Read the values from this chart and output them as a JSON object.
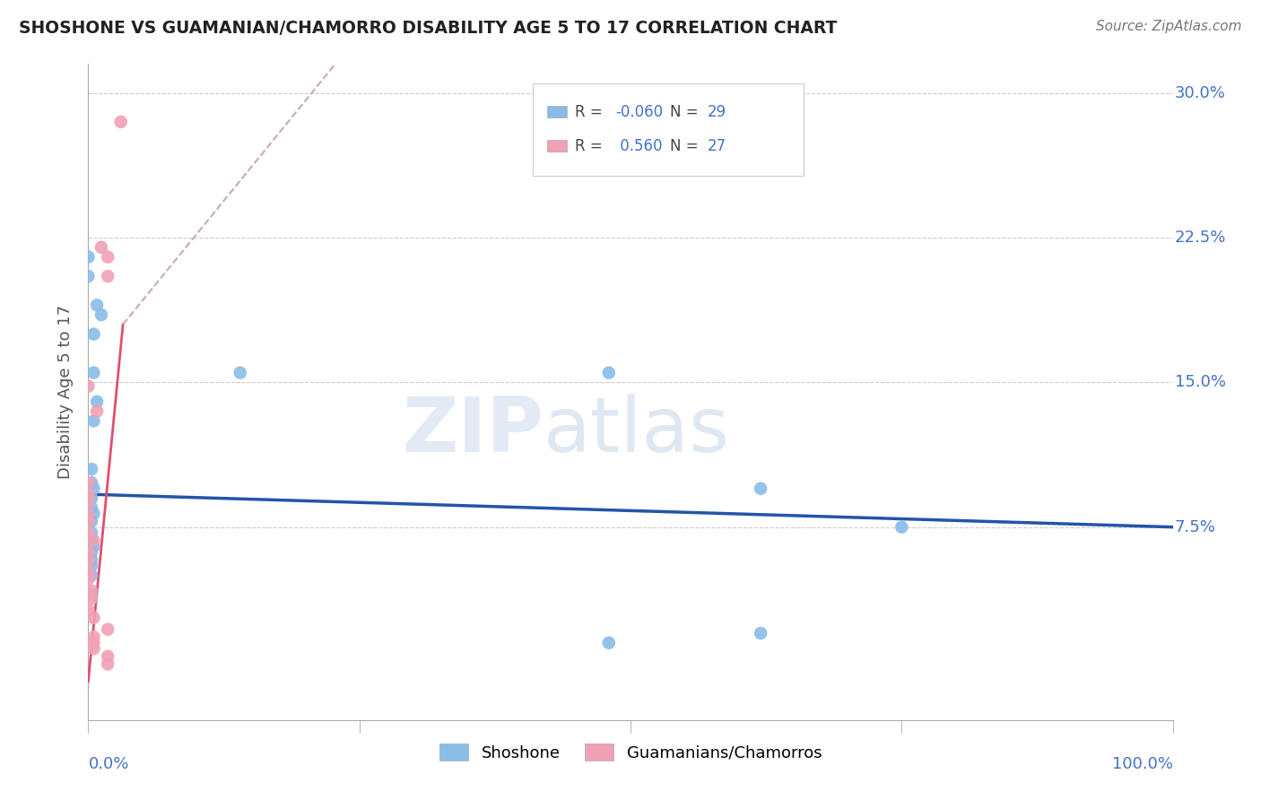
{
  "title": "SHOSHONE VS GUAMANIAN/CHAMORRO DISABILITY AGE 5 TO 17 CORRELATION CHART",
  "source": "Source: ZipAtlas.com",
  "ylabel": "Disability Age 5 to 17",
  "ytick_values": [
    0.075,
    0.15,
    0.225,
    0.3
  ],
  "ytick_labels": [
    "7.5%",
    "15.0%",
    "22.5%",
    "30.0%"
  ],
  "xlim": [
    0.0,
    1.0
  ],
  "ylim": [
    -0.025,
    0.315
  ],
  "r_shoshone": -0.06,
  "n_shoshone": 29,
  "r_guamanian": 0.56,
  "n_guamanian": 27,
  "shoshone_color": "#88bde8",
  "guamanian_color": "#f2a0b5",
  "shoshone_line_color": "#2255aa",
  "guamanian_line_color": "#e05070",
  "guamanian_line_dash_color": "#ccaaaa",
  "watermark_color": "#ccd8ee",
  "grid_color": "#cccccc",
  "shoshone_points": [
    [
      0.0,
      0.205
    ],
    [
      0.008,
      0.19
    ],
    [
      0.012,
      0.185
    ],
    [
      0.005,
      0.175
    ],
    [
      0.0,
      0.215
    ],
    [
      0.005,
      0.155
    ],
    [
      0.005,
      0.13
    ],
    [
      0.008,
      0.14
    ],
    [
      0.003,
      0.105
    ],
    [
      0.003,
      0.098
    ],
    [
      0.005,
      0.095
    ],
    [
      0.003,
      0.09
    ],
    [
      0.003,
      0.085
    ],
    [
      0.005,
      0.082
    ],
    [
      0.003,
      0.078
    ],
    [
      0.003,
      0.072
    ],
    [
      0.003,
      0.068
    ],
    [
      0.005,
      0.065
    ],
    [
      0.003,
      0.062
    ],
    [
      0.003,
      0.058
    ],
    [
      0.003,
      0.055
    ],
    [
      0.003,
      0.05
    ],
    [
      0.003,
      0.04
    ],
    [
      0.14,
      0.155
    ],
    [
      0.48,
      0.155
    ],
    [
      0.62,
      0.095
    ],
    [
      0.75,
      0.075
    ],
    [
      0.62,
      0.02
    ],
    [
      0.48,
      0.015
    ]
  ],
  "guamanian_points": [
    [
      0.03,
      0.285
    ],
    [
      0.012,
      0.22
    ],
    [
      0.018,
      0.215
    ],
    [
      0.018,
      0.205
    ],
    [
      0.0,
      0.148
    ],
    [
      0.008,
      0.135
    ],
    [
      0.0,
      0.098
    ],
    [
      0.0,
      0.092
    ],
    [
      0.0,
      0.088
    ],
    [
      0.0,
      0.082
    ],
    [
      0.0,
      0.078
    ],
    [
      0.0,
      0.072
    ],
    [
      0.005,
      0.068
    ],
    [
      0.0,
      0.062
    ],
    [
      0.0,
      0.058
    ],
    [
      0.0,
      0.052
    ],
    [
      0.0,
      0.048
    ],
    [
      0.003,
      0.042
    ],
    [
      0.003,
      0.038
    ],
    [
      0.0,
      0.032
    ],
    [
      0.005,
      0.028
    ],
    [
      0.018,
      0.022
    ],
    [
      0.005,
      0.018
    ],
    [
      0.005,
      0.015
    ],
    [
      0.005,
      0.012
    ],
    [
      0.018,
      0.008
    ],
    [
      0.018,
      0.004
    ]
  ],
  "legend_shoshone_label": "Shoshone",
  "legend_guamanian_label": "Guamanians/Chamorros",
  "shoshone_trendline": [
    0.0,
    1.0,
    0.092,
    0.075
  ],
  "guamanian_trendline_solid": [
    0.0,
    0.032,
    -0.005,
    0.18
  ],
  "guamanian_trendline_dash": [
    0.032,
    0.235,
    0.18,
    0.32
  ]
}
